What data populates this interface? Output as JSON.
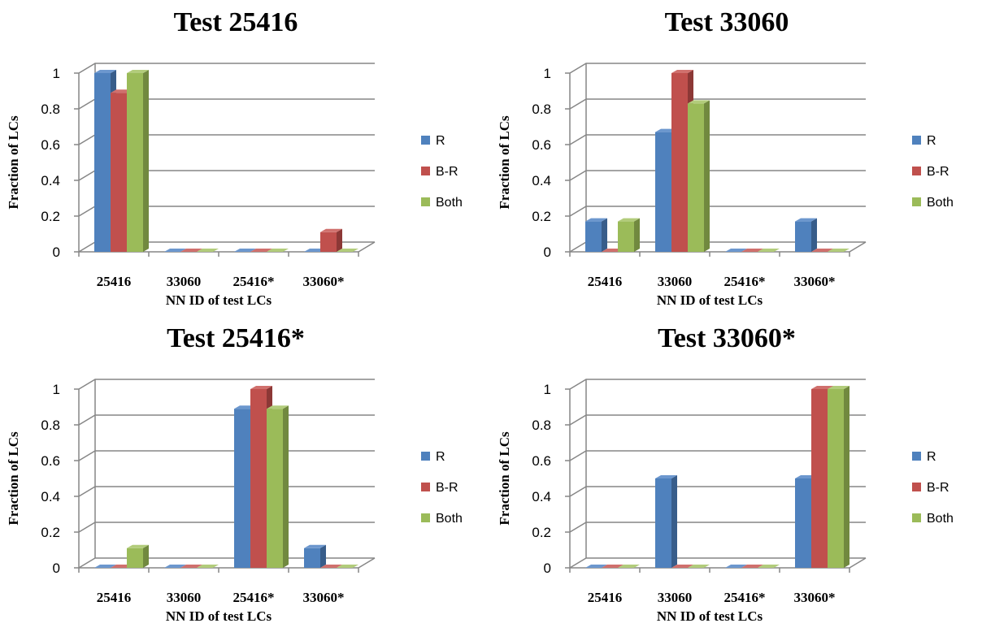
{
  "series_colors": {
    "R": {
      "front": "#4F81BD",
      "side": "#385D8A",
      "top": "#6C97CE"
    },
    "B-R": {
      "front": "#C0504D",
      "side": "#8C3836",
      "top": "#D0706D"
    },
    "Both": {
      "front": "#9BBB59",
      "side": "#71893F",
      "top": "#B2CC7B"
    }
  },
  "chart_data": [
    {
      "type": "bar",
      "title": "Test 25416",
      "xlabel": "NN ID of test LCs",
      "ylabel": "Fraction of LCs",
      "categories": [
        "25416",
        "33060",
        "25416*",
        "33060*"
      ],
      "yticks": [
        "0",
        "0.2",
        "0.4",
        "0.6",
        "0.8",
        "1"
      ],
      "ylim": [
        0,
        1
      ],
      "legend_position": "right",
      "series": [
        {
          "name": "R",
          "values": [
            1.0,
            0,
            0,
            0
          ]
        },
        {
          "name": "B-R",
          "values": [
            0.89,
            0,
            0,
            0.11
          ]
        },
        {
          "name": "Both",
          "values": [
            1.0,
            0,
            0,
            0
          ]
        }
      ]
    },
    {
      "type": "bar",
      "title": "Test 33060",
      "xlabel": "NN ID of test LCs",
      "ylabel": "Fraction of LCs",
      "categories": [
        "25416",
        "33060",
        "25416*",
        "33060*"
      ],
      "yticks": [
        "0",
        "0.2",
        "0.4",
        "0.6",
        "0.8",
        "1"
      ],
      "ylim": [
        0,
        1
      ],
      "legend_position": "right",
      "series": [
        {
          "name": "R",
          "values": [
            0.17,
            0.67,
            0,
            0.17
          ]
        },
        {
          "name": "B-R",
          "values": [
            0,
            1.0,
            0,
            0
          ]
        },
        {
          "name": "Both",
          "values": [
            0.17,
            0.83,
            0,
            0
          ]
        }
      ]
    },
    {
      "type": "bar",
      "title": "Test 25416*",
      "xlabel": "NN ID of test LCs",
      "ylabel": "Fraction of LCs",
      "categories": [
        "25416",
        "33060",
        "25416*",
        "33060*"
      ],
      "yticks": [
        "0",
        "0.2",
        "0.4",
        "0.6",
        "0.8",
        "1"
      ],
      "ylim": [
        0,
        1
      ],
      "legend_position": "right",
      "series": [
        {
          "name": "R",
          "values": [
            0,
            0,
            0.89,
            0.11
          ]
        },
        {
          "name": "B-R",
          "values": [
            0,
            0,
            1.0,
            0
          ]
        },
        {
          "name": "Both",
          "values": [
            0.11,
            0,
            0.89,
            0
          ]
        }
      ]
    },
    {
      "type": "bar",
      "title": "Test 33060*",
      "xlabel": "NN ID of test LCs",
      "ylabel": "Fraction of LCs",
      "categories": [
        "25416",
        "33060",
        "25416*",
        "33060*"
      ],
      "yticks": [
        "0",
        "0.2",
        "0.4",
        "0.6",
        "0.8",
        "1"
      ],
      "ylim": [
        0,
        1
      ],
      "legend_position": "right",
      "series": [
        {
          "name": "R",
          "values": [
            0,
            0.5,
            0,
            0.5
          ]
        },
        {
          "name": "B-R",
          "values": [
            0,
            0,
            0,
            1.0
          ]
        },
        {
          "name": "Both",
          "values": [
            0,
            0,
            0,
            1.0
          ]
        }
      ]
    }
  ]
}
